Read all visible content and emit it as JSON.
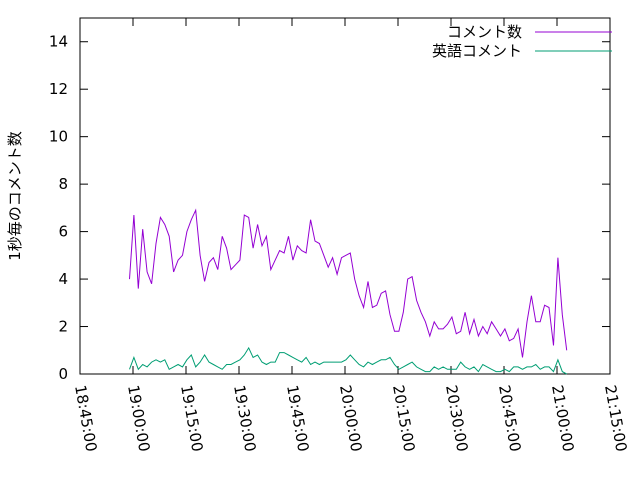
{
  "chart_data": {
    "type": "line",
    "y_label": "1秒毎のコメント数",
    "x": [
      "18:59:00",
      "19:00:15",
      "19:01:30",
      "19:02:45",
      "19:04:00",
      "19:05:15",
      "19:06:30",
      "19:07:45",
      "19:09:00",
      "19:10:15",
      "19:11:30",
      "19:12:45",
      "19:14:00",
      "19:15:15",
      "19:16:30",
      "19:17:45",
      "19:19:00",
      "19:20:15",
      "19:21:30",
      "19:22:45",
      "19:24:00",
      "19:25:15",
      "19:26:30",
      "19:27:45",
      "19:29:00",
      "19:30:15",
      "19:31:30",
      "19:32:45",
      "19:34:00",
      "19:35:15",
      "19:36:30",
      "19:37:45",
      "19:39:00",
      "19:40:15",
      "19:41:30",
      "19:42:45",
      "19:44:00",
      "19:45:15",
      "19:46:30",
      "19:47:45",
      "19:49:00",
      "19:50:15",
      "19:51:30",
      "19:52:45",
      "19:54:00",
      "19:55:15",
      "19:56:30",
      "19:57:45",
      "19:59:00",
      "20:00:15",
      "20:01:30",
      "20:02:45",
      "20:04:00",
      "20:05:15",
      "20:06:30",
      "20:07:45",
      "20:09:00",
      "20:10:15",
      "20:11:30",
      "20:12:45",
      "20:14:00",
      "20:15:15",
      "20:16:30",
      "20:17:45",
      "20:19:00",
      "20:20:15",
      "20:21:30",
      "20:22:45",
      "20:24:00",
      "20:25:15",
      "20:26:30",
      "20:27:45",
      "20:29:00",
      "20:30:15",
      "20:31:30",
      "20:32:45",
      "20:34:00",
      "20:35:15",
      "20:36:30",
      "20:37:45",
      "20:39:00",
      "20:40:15",
      "20:41:30",
      "20:42:45",
      "20:44:00",
      "20:45:15",
      "20:46:30",
      "20:47:45",
      "20:49:00",
      "20:50:15",
      "20:51:30",
      "20:52:45",
      "20:54:00",
      "20:55:15",
      "20:56:30",
      "20:57:45",
      "20:59:00",
      "21:00:15",
      "21:01:30",
      "21:02:45"
    ],
    "series": [
      {
        "name": "コメント数",
        "color": "#9400d3",
        "values": [
          4.0,
          6.7,
          3.6,
          6.1,
          4.3,
          3.8,
          5.5,
          6.6,
          6.3,
          5.8,
          4.3,
          4.8,
          5.0,
          6.0,
          6.5,
          6.9,
          5.0,
          3.9,
          4.7,
          4.9,
          4.4,
          5.8,
          5.3,
          4.4,
          4.6,
          4.8,
          6.7,
          6.6,
          5.3,
          6.3,
          5.4,
          5.8,
          4.4,
          4.8,
          5.2,
          5.1,
          5.8,
          4.8,
          5.4,
          5.2,
          5.1,
          6.5,
          5.6,
          5.5,
          5.0,
          4.5,
          4.9,
          4.2,
          4.9,
          5.0,
          5.1,
          4.0,
          3.3,
          2.8,
          3.9,
          2.8,
          2.9,
          3.4,
          3.5,
          2.5,
          1.8,
          1.8,
          2.6,
          4.0,
          4.1,
          3.1,
          2.6,
          2.2,
          1.6,
          2.2,
          1.9,
          1.9,
          2.1,
          2.4,
          1.7,
          1.8,
          2.6,
          1.7,
          2.3,
          1.6,
          2.0,
          1.7,
          2.2,
          1.9,
          1.6,
          1.9,
          1.4,
          1.5,
          1.9,
          0.7,
          2.2,
          3.3,
          2.2,
          2.2,
          2.9,
          2.8,
          1.2,
          4.9,
          2.5,
          1.0
        ]
      },
      {
        "name": "英語コメント",
        "color": "#009e73",
        "values": [
          0.2,
          0.7,
          0.2,
          0.4,
          0.3,
          0.5,
          0.6,
          0.5,
          0.6,
          0.2,
          0.3,
          0.4,
          0.3,
          0.6,
          0.8,
          0.3,
          0.5,
          0.8,
          0.5,
          0.4,
          0.3,
          0.2,
          0.4,
          0.4,
          0.5,
          0.6,
          0.8,
          1.1,
          0.7,
          0.8,
          0.5,
          0.4,
          0.5,
          0.5,
          0.9,
          0.9,
          0.8,
          0.7,
          0.6,
          0.5,
          0.7,
          0.4,
          0.5,
          0.4,
          0.5,
          0.5,
          0.5,
          0.5,
          0.5,
          0.6,
          0.8,
          0.6,
          0.4,
          0.3,
          0.5,
          0.4,
          0.5,
          0.6,
          0.6,
          0.7,
          0.4,
          0.2,
          0.3,
          0.4,
          0.5,
          0.3,
          0.2,
          0.1,
          0.1,
          0.3,
          0.2,
          0.3,
          0.2,
          0.2,
          0.2,
          0.5,
          0.3,
          0.2,
          0.3,
          0.1,
          0.4,
          0.3,
          0.2,
          0.1,
          0.1,
          0.2,
          0.1,
          0.3,
          0.3,
          0.2,
          0.3,
          0.3,
          0.4,
          0.2,
          0.3,
          0.3,
          0.1,
          0.6,
          0.1,
          0.0
        ]
      }
    ],
    "xlim": [
      "18:45:00",
      "21:15:00"
    ],
    "xticks": [
      "18:45:00",
      "19:00:00",
      "19:15:00",
      "19:30:00",
      "19:45:00",
      "20:00:00",
      "20:15:00",
      "20:30:00",
      "20:45:00",
      "21:00:00",
      "21:15:00"
    ],
    "ylim": [
      0,
      15
    ],
    "yticks": [
      0,
      2,
      4,
      6,
      8,
      10,
      12,
      14
    ],
    "legend": "top-right"
  }
}
